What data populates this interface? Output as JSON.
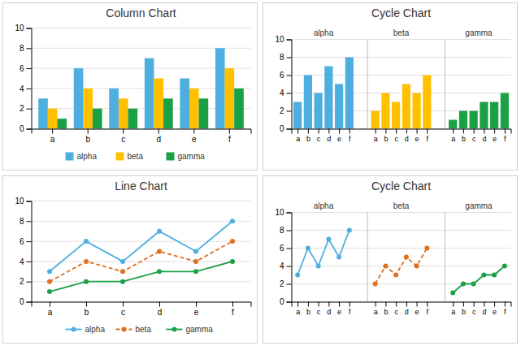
{
  "chart_data": [
    {
      "type": "bar",
      "title": "Column Chart",
      "categories": [
        "a",
        "b",
        "c",
        "d",
        "e",
        "f"
      ],
      "series": [
        {
          "name": "alpha",
          "color": "#4DAEDF",
          "values": [
            3,
            6,
            4,
            7,
            5,
            8
          ]
        },
        {
          "name": "beta",
          "color": "#FFC000",
          "values": [
            2,
            4,
            3,
            5,
            4,
            6
          ]
        },
        {
          "name": "gamma",
          "color": "#1AA045",
          "values": [
            1,
            2,
            2,
            3,
            3,
            4
          ]
        }
      ],
      "ylim": [
        0,
        10
      ],
      "yticks": [
        0,
        2,
        4,
        6,
        8,
        10
      ],
      "grid": true,
      "legend": "bottom"
    },
    {
      "type": "cycle",
      "title": "Cycle Chart",
      "categories": [
        "a",
        "b",
        "c",
        "d",
        "e",
        "f"
      ],
      "series": [
        {
          "name": "alpha",
          "type": "bar",
          "color": "#4DAEDF",
          "values": [
            3,
            6,
            4,
            7,
            5,
            8
          ]
        },
        {
          "name": "beta",
          "type": "bar",
          "color": "#FFC000",
          "values": [
            2,
            4,
            3,
            5,
            4,
            6
          ]
        },
        {
          "name": "gamma",
          "type": "bar",
          "color": "#1AA045",
          "values": [
            1,
            2,
            2,
            3,
            3,
            4
          ]
        }
      ],
      "ylim": [
        0,
        10
      ],
      "yticks": [
        0,
        2,
        4,
        6,
        8,
        10
      ],
      "grid": true
    },
    {
      "type": "line",
      "title": "Line Chart",
      "categories": [
        "a",
        "b",
        "c",
        "d",
        "e",
        "f"
      ],
      "series": [
        {
          "name": "alpha",
          "color": "#4DAEDF",
          "marker": "circle",
          "line_style": "solid",
          "values": [
            3,
            6,
            4,
            7,
            5,
            8
          ]
        },
        {
          "name": "beta",
          "color": "#E07020",
          "marker": "circle",
          "line_style": "dashed",
          "values": [
            2,
            4,
            3,
            5,
            4,
            6
          ]
        },
        {
          "name": "gamma",
          "color": "#1AA045",
          "marker": "circle",
          "line_style": "solid",
          "values": [
            1,
            2,
            2,
            3,
            3,
            4
          ]
        }
      ],
      "ylim": [
        0,
        10
      ],
      "yticks": [
        0,
        2,
        4,
        6,
        8,
        10
      ],
      "grid": true,
      "legend": "bottom"
    },
    {
      "type": "cycle",
      "title": "Cycle Chart",
      "categories": [
        "a",
        "b",
        "c",
        "d",
        "e",
        "f"
      ],
      "series": [
        {
          "name": "alpha",
          "type": "line",
          "color": "#4DAEDF",
          "marker": "circle",
          "line_style": "solid",
          "values": [
            3,
            6,
            4,
            7,
            5,
            8
          ]
        },
        {
          "name": "beta",
          "type": "line",
          "color": "#E07020",
          "marker": "circle",
          "line_style": "dashed",
          "values": [
            2,
            4,
            3,
            5,
            4,
            6
          ]
        },
        {
          "name": "gamma",
          "type": "line",
          "color": "#1AA045",
          "marker": "circle",
          "line_style": "solid",
          "values": [
            1,
            2,
            2,
            3,
            3,
            4
          ]
        }
      ],
      "ylim": [
        0,
        10
      ],
      "yticks": [
        0,
        2,
        4,
        6,
        8,
        10
      ],
      "grid": true
    }
  ]
}
